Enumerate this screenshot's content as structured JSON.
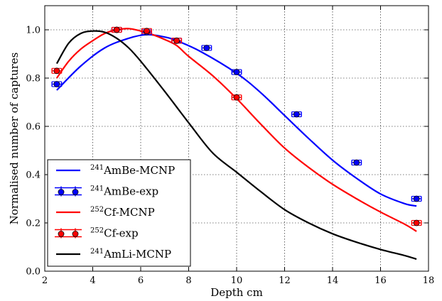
{
  "chart_data": {
    "type": "line",
    "title": "",
    "xlabel": "Depth cm",
    "ylabel": "Normalised number of captures",
    "xlim": [
      2,
      18
    ],
    "ylim": [
      0.0,
      1.1
    ],
    "xticks": [
      2,
      4,
      6,
      8,
      10,
      12,
      14,
      16,
      18
    ],
    "yticks": [
      0.0,
      0.2,
      0.4,
      0.6,
      0.8,
      1.0
    ],
    "ytick_labels": [
      "0.0",
      "0.2",
      "0.4",
      "0.6",
      "0.8",
      "1.0"
    ],
    "grid": true,
    "legend_position": "lower-left",
    "series": [
      {
        "name": "AmBe-MCNP",
        "isotope": "241",
        "kind": "line",
        "color": "#0000ff",
        "x": [
          2.5,
          3.5,
          4.5,
          5.5,
          6.25,
          7,
          7.5,
          8.5,
          10,
          11,
          12,
          13,
          14,
          15,
          16,
          17,
          17.5
        ],
        "y": [
          0.75,
          0.85,
          0.925,
          0.965,
          0.98,
          0.97,
          0.955,
          0.91,
          0.82,
          0.74,
          0.645,
          0.55,
          0.46,
          0.385,
          0.32,
          0.28,
          0.27
        ]
      },
      {
        "name": "AmBe-exp",
        "isotope": "241",
        "kind": "errorbar",
        "color": "#0000ff",
        "x": [
          2.5,
          5,
          6.25,
          7.5,
          8.75,
          10,
          12.5,
          15,
          17.5
        ],
        "y": [
          0.775,
          1.0,
          0.99,
          0.955,
          0.925,
          0.825,
          0.65,
          0.45,
          0.3
        ],
        "xerr": [
          0.2,
          0.2,
          0.2,
          0.2,
          0.2,
          0.2,
          0.2,
          0.2,
          0.2
        ]
      },
      {
        "name": "Cf-MCNP",
        "isotope": "252",
        "kind": "line",
        "color": "#ff0000",
        "x": [
          2.5,
          3,
          3.5,
          4,
          4.5,
          5,
          5.5,
          6,
          6.5,
          7,
          7.5,
          8,
          9,
          10,
          11,
          12,
          13,
          14,
          15,
          16,
          17,
          17.5
        ],
        "y": [
          0.8,
          0.87,
          0.92,
          0.955,
          0.985,
          1.0,
          1.005,
          0.995,
          0.98,
          0.96,
          0.935,
          0.89,
          0.81,
          0.715,
          0.61,
          0.51,
          0.43,
          0.36,
          0.3,
          0.245,
          0.195,
          0.165
        ]
      },
      {
        "name": "Cf-exp",
        "isotope": "252",
        "kind": "errorbar",
        "color": "#ff0000",
        "x": [
          2.5,
          5,
          6.25,
          7.5,
          10,
          17.5
        ],
        "y": [
          0.83,
          1.0,
          0.995,
          0.955,
          0.72,
          0.2
        ],
        "xerr": [
          0.2,
          0.2,
          0.2,
          0.2,
          0.2,
          0.2
        ]
      },
      {
        "name": "AmLi-MCNP",
        "isotope": "241",
        "kind": "line",
        "color": "#000000",
        "x": [
          2.5,
          3,
          3.5,
          4,
          4.5,
          5,
          5.5,
          6,
          7,
          8,
          9,
          10,
          11,
          12,
          13,
          14,
          15,
          16,
          17,
          17.5
        ],
        "y": [
          0.86,
          0.945,
          0.985,
          0.995,
          0.99,
          0.965,
          0.925,
          0.87,
          0.745,
          0.615,
          0.49,
          0.41,
          0.33,
          0.255,
          0.2,
          0.155,
          0.12,
          0.09,
          0.065,
          0.05
        ]
      }
    ]
  }
}
